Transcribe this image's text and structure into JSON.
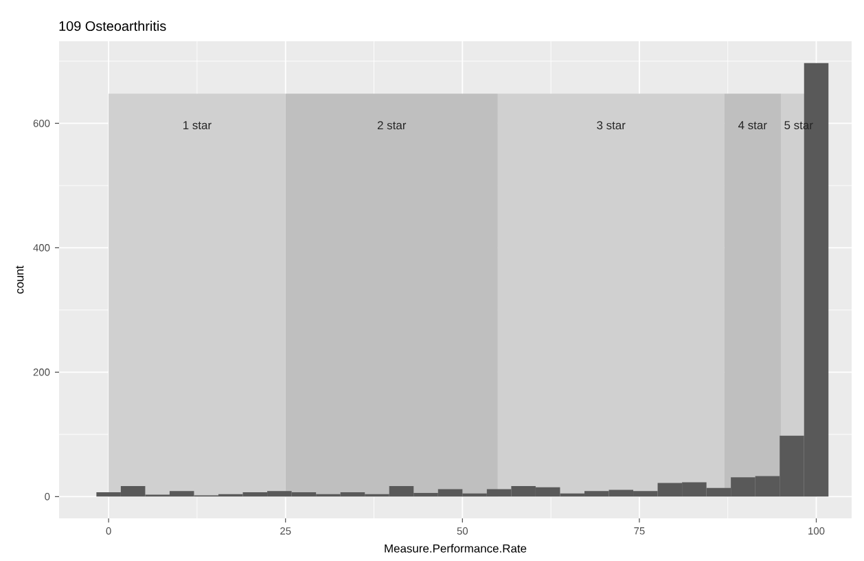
{
  "chart_data": {
    "type": "histogram",
    "title": "109 Osteoarthritis",
    "xlabel": "Measure.Performance.Rate",
    "ylabel": "count",
    "bins": [
      -1.724,
      1.724,
      5.172,
      8.621,
      12.069,
      15.517,
      18.966,
      22.414,
      25.862,
      29.31,
      32.759,
      36.207,
      39.655,
      43.103,
      46.552,
      50,
      53.448,
      56.897,
      60.345,
      63.793,
      67.241,
      70.69,
      74.138,
      77.586,
      81.034,
      84.483,
      87.931,
      91.379,
      94.828,
      98.276,
      101.724
    ],
    "values": [
      7,
      17,
      3,
      9,
      2,
      4,
      7,
      9,
      7,
      4,
      7,
      4,
      17,
      6,
      12,
      5,
      12,
      17,
      15,
      5,
      9,
      11,
      9,
      22,
      23,
      14,
      31,
      33,
      98,
      697
    ],
    "color": "#595959",
    "xlim": [
      -7,
      105
    ],
    "ylim": [
      -35,
      732
    ],
    "xticks": [
      0,
      25,
      50,
      75,
      100
    ],
    "yticks": [
      0,
      200,
      400,
      600
    ],
    "grid": true,
    "bands": [
      {
        "axis": "x",
        "from": 0,
        "to": 25,
        "label": "1 star",
        "color": "#d0d0d0"
      },
      {
        "axis": "x",
        "from": 25,
        "to": 55,
        "label": "2 star",
        "color": "#bfbfbf"
      },
      {
        "axis": "x",
        "from": 55,
        "to": 87,
        "label": "3 star",
        "color": "#d0d0d0"
      },
      {
        "axis": "x",
        "from": 87,
        "to": 95,
        "label": "4 star",
        "color": "#bfbfbf"
      },
      {
        "axis": "x",
        "from": 95,
        "to": 100,
        "label": "5 star",
        "color": "#d0d0d0"
      }
    ]
  }
}
